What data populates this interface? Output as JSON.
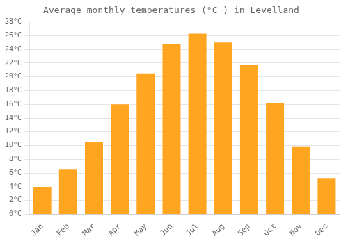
{
  "chart_data": {
    "type": "bar",
    "title": "Average monthly temperatures (°C ) in Levelland",
    "categories": [
      "Jan",
      "Feb",
      "Mar",
      "Apr",
      "May",
      "Jun",
      "Jul",
      "Aug",
      "Sep",
      "Oct",
      "Nov",
      "Dec"
    ],
    "values": [
      4.0,
      6.5,
      10.5,
      16.0,
      20.5,
      24.8,
      26.3,
      25.0,
      21.8,
      16.2,
      9.8,
      5.2
    ],
    "color": "#FFA520",
    "ylim": [
      0,
      28
    ],
    "yticks": [
      {
        "value": 0,
        "label": "0°C"
      },
      {
        "value": 2,
        "label": "2°C"
      },
      {
        "value": 4,
        "label": "4°C"
      },
      {
        "value": 6,
        "label": "6°C"
      },
      {
        "value": 8,
        "label": "8°C"
      },
      {
        "value": 10,
        "label": "10°C"
      },
      {
        "value": 12,
        "label": "12°C"
      },
      {
        "value": 14,
        "label": "14°C"
      },
      {
        "value": 16,
        "label": "16°C"
      },
      {
        "value": 18,
        "label": "18°C"
      },
      {
        "value": 20,
        "label": "20°C"
      },
      {
        "value": 22,
        "label": "22°C"
      },
      {
        "value": 24,
        "label": "24°C"
      },
      {
        "value": 26,
        "label": "26°C"
      },
      {
        "value": 28,
        "label": "28°C"
      }
    ],
    "grid": true
  }
}
